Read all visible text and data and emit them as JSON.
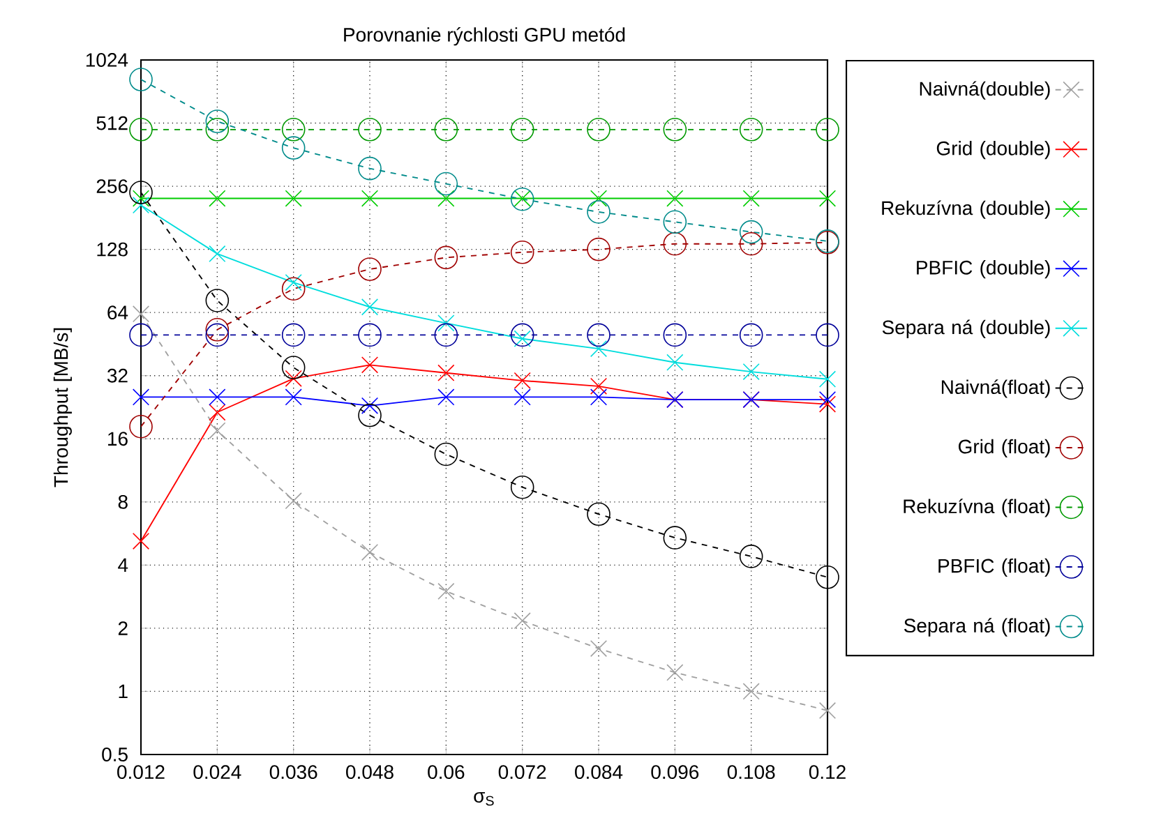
{
  "chart_data": {
    "type": "line",
    "title": "Porovnanie rýchlosti GPU metód",
    "xlabel": "σ$_{S}$",
    "ylabel": "Throughput [MB/s]",
    "x": [
      0.012,
      0.024,
      0.036,
      0.048,
      0.06,
      0.072,
      0.084,
      0.096,
      0.108,
      0.12
    ],
    "xlim": [
      0.012,
      0.12
    ],
    "xticks": [
      0.012,
      0.024,
      0.036,
      0.048,
      0.06,
      0.072,
      0.084,
      0.096,
      0.108,
      0.12
    ],
    "ylim": [
      0.5,
      1024
    ],
    "yticks": [
      0.5,
      1,
      2,
      4,
      8,
      16,
      32,
      64,
      128,
      256,
      512,
      1024
    ],
    "log": "y",
    "grid": true,
    "legend": "right",
    "series": [
      {
        "name": "Naivná(double)",
        "color": "#a0a0a0",
        "marker": "cross",
        "line_style": "dashed",
        "values": [
          63,
          17.5,
          8.1,
          4.6,
          3.0,
          2.17,
          1.6,
          1.23,
          1.0,
          0.81
        ]
      },
      {
        "name": "Grid (double)",
        "color": "#ff0000",
        "marker": "cross",
        "line_style": "solid",
        "values": [
          5.2,
          21.4,
          31,
          36,
          33,
          30.3,
          28.5,
          24.6,
          24.6,
          23.4
        ]
      },
      {
        "name": "Rekuzívna (double)",
        "color": "#00cc00",
        "marker": "cross",
        "line_style": "solid",
        "values": [
          224,
          224,
          224,
          224,
          224,
          224,
          224,
          224,
          224,
          224
        ]
      },
      {
        "name": "PBFIC (double)",
        "color": "#0000ff",
        "marker": "cross",
        "line_style": "solid",
        "values": [
          25.3,
          25.3,
          25.3,
          23,
          25.3,
          25.3,
          25.3,
          24.6,
          24.6,
          24.6
        ]
      },
      {
        "name": "Separa ná (double)",
        "color": "#00dddd",
        "marker": "cross",
        "line_style": "solid",
        "values": [
          208,
          122,
          89,
          68,
          57,
          48,
          43,
          37,
          33.4,
          30.8
        ]
      },
      {
        "name": "Naivná(float)",
        "color": "#000000",
        "marker": "circle",
        "line_style": "dashed",
        "values": [
          239,
          73,
          35,
          20.7,
          13.5,
          9.4,
          7.0,
          5.4,
          4.4,
          3.5
        ]
      },
      {
        "name": "Grid (float)",
        "color": "#a00000",
        "marker": "circle",
        "line_style": "dashed",
        "values": [
          18.3,
          53,
          83,
          103,
          117,
          124,
          128,
          136,
          136,
          138
        ]
      },
      {
        "name": "Rekuzívna (float)",
        "color": "#009900",
        "marker": "circle",
        "line_style": "dashed",
        "values": [
          477,
          477,
          477,
          477,
          477,
          477,
          477,
          477,
          477,
          477
        ]
      },
      {
        "name": "PBFIC (float)",
        "color": "#000099",
        "marker": "circle",
        "line_style": "dashed",
        "values": [
          50,
          50,
          50,
          50,
          50,
          50,
          50,
          50,
          50,
          50
        ]
      },
      {
        "name": "Separa ná (float)",
        "color": "#008b8b",
        "marker": "circle",
        "line_style": "dashed",
        "values": [
          826,
          522,
          390,
          311,
          263,
          222,
          193,
          173,
          155,
          140
        ]
      }
    ]
  }
}
